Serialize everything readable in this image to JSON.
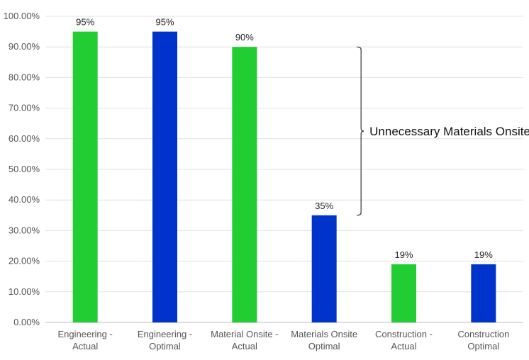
{
  "chart_data": {
    "type": "bar",
    "categories": [
      [
        "Engineering -",
        "Actual"
      ],
      [
        "Engineering -",
        "Optimal"
      ],
      [
        "Material Onsite -",
        "Actual"
      ],
      [
        "Materials Onsite",
        "Optimal"
      ],
      [
        "Construction -",
        "Actual"
      ],
      [
        "Construction",
        "Optimal"
      ]
    ],
    "values": [
      95,
      95,
      90,
      35,
      19,
      19
    ],
    "data_labels": [
      "95%",
      "95%",
      "90%",
      "35%",
      "19%",
      "19%"
    ],
    "bar_colors": [
      "#22cc33",
      "#0033cc",
      "#22cc33",
      "#0033cc",
      "#22cc33",
      "#0033cc"
    ],
    "ylim": [
      0,
      100
    ],
    "yticks": [
      0,
      10,
      20,
      30,
      40,
      50,
      60,
      70,
      80,
      90,
      100
    ],
    "ytick_labels": [
      "0.00%",
      "10.00%",
      "20.00%",
      "30.00%",
      "40.00%",
      "50.00%",
      "60.00%",
      "70.00%",
      "80.00%",
      "90.00%",
      "100.00%"
    ],
    "grid": true,
    "annotation": {
      "text": "Unnecessary Materials Onsite",
      "from_value": 90,
      "to_value": 35
    },
    "title": "",
    "xlabel": "",
    "ylabel": ""
  }
}
